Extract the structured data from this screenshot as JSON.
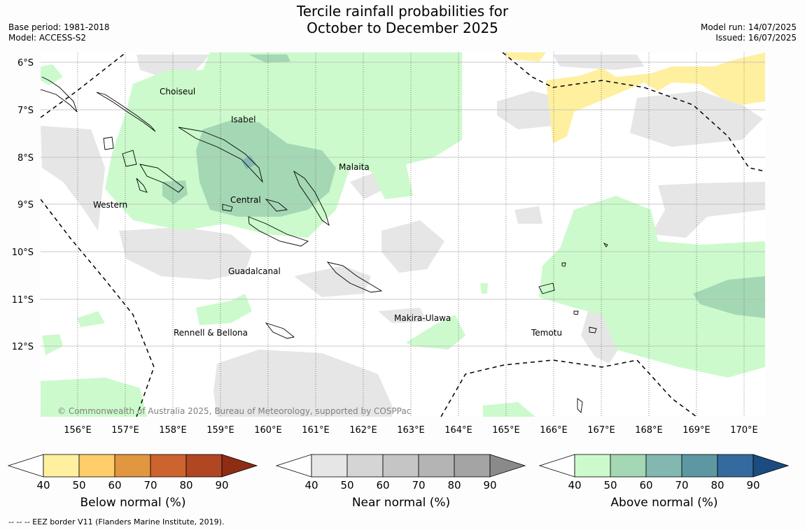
{
  "title_line1": "Tercile rainfall probabilities for",
  "title_line2": "October to December 2025",
  "base_period": "Base period: 1981-2018",
  "model": "Model: ACCESS-S2",
  "model_run": "Model run: 14/07/2025",
  "issued": "Issued: 16/07/2025",
  "copyright": "© Commonwealth of Australia 2025, Bureau of Meteorology, supported by COSPPac",
  "footer": "--  --  -- EEZ border V11 (Flanders Marine Institute, 2019).",
  "lat_labels": [
    "6°S",
    "7°S",
    "8°S",
    "9°S",
    "10°S",
    "11°S",
    "12°S"
  ],
  "lon_labels": [
    "156°E",
    "157°E",
    "158°E",
    "159°E",
    "160°E",
    "161°E",
    "162°E",
    "163°E",
    "164°E",
    "165°E",
    "166°E",
    "167°E",
    "168°E",
    "169°E",
    "170°E"
  ],
  "regions": [
    "Choiseul",
    "Isabel",
    "Malaita",
    "Western",
    "Central",
    "Guadalcanal",
    "Makira-Ulawa",
    "Temotu",
    "Rennell & Bellona"
  ],
  "colorbars": [
    {
      "title": "Below normal (%)",
      "ticks": [
        "40",
        "50",
        "60",
        "70",
        "80",
        "90"
      ],
      "colors": [
        "#fff0a0",
        "#ffcd69",
        "#e2963f",
        "#cd632f",
        "#b04622",
        "#8e2c14"
      ]
    },
    {
      "title": "Near normal (%)",
      "ticks": [
        "40",
        "50",
        "60",
        "70",
        "80",
        "90"
      ],
      "colors": [
        "#e6e6e6",
        "#d5d5d5",
        "#c5c5c5",
        "#b4b4b4",
        "#a4a4a4",
        "#8a8a8a"
      ]
    },
    {
      "title": "Above normal (%)",
      "ticks": [
        "40",
        "50",
        "60",
        "70",
        "80",
        "90"
      ],
      "colors": [
        "#ccfacc",
        "#a4d8b4",
        "#83b8b2",
        "#5d97a2",
        "#346a9e",
        "#1b4c80"
      ]
    }
  ]
}
